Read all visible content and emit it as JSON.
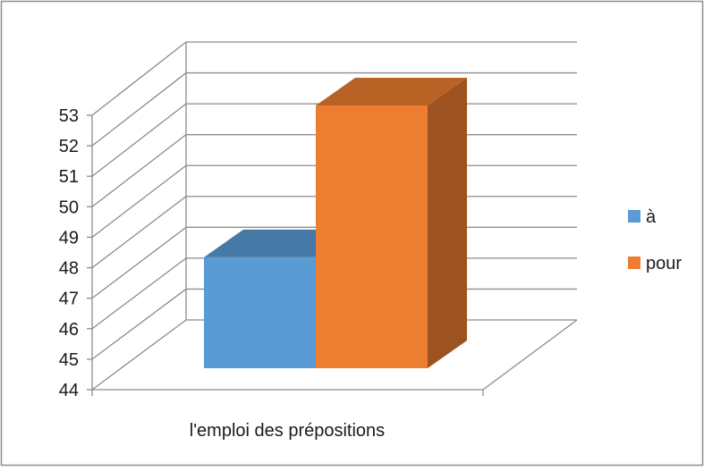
{
  "chart_data": {
    "type": "bar",
    "title": "",
    "xlabel": "",
    "ylabel": "",
    "categories": [
      "l'emploi des prépositions"
    ],
    "series": [
      {
        "name": "à",
        "values": [
          47.8
        ],
        "color": "#5b9bd5"
      },
      {
        "name": "pour",
        "values": [
          53
        ],
        "color": "#ed7d31"
      }
    ],
    "ylim": [
      44,
      53
    ],
    "yticks": [
      "44",
      "45",
      "46",
      "47",
      "48",
      "49",
      "50",
      "51",
      "52",
      "53"
    ],
    "grid": true,
    "style": "3d-clustered",
    "legend": "right"
  }
}
